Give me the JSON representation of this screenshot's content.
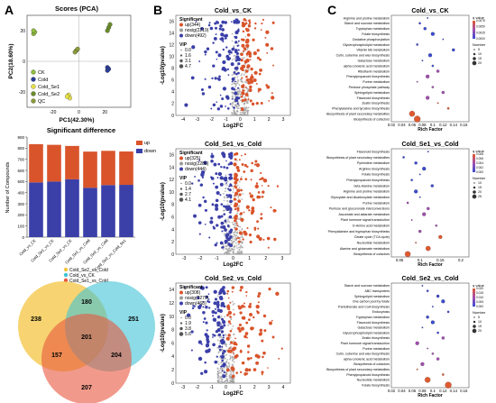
{
  "figure": {
    "panel_labels": [
      "A",
      "B",
      "C"
    ]
  },
  "chart_data": [
    {
      "id": "pca",
      "type": "scatter",
      "title": "Scores (PCA)",
      "xlabel": "PC1(42.30%)",
      "ylabel": "PC2(18.60%)",
      "xticks": [
        -20,
        0,
        20
      ],
      "yticks": [
        -20,
        0,
        20
      ],
      "xlim": [
        -40,
        40
      ],
      "ylim": [
        -30,
        30
      ],
      "series": [
        {
          "name": "CK",
          "color": "#8fbc3f",
          "points": [
            [
              -35,
              18
            ],
            [
              -34,
              19
            ],
            [
              -35,
              20
            ]
          ]
        },
        {
          "name": "Cold",
          "color": "#2a3e9a",
          "points": [
            [
              22,
              -4
            ],
            [
              23,
              -5
            ],
            [
              22,
              -6
            ]
          ]
        },
        {
          "name": "Cold_Se1",
          "color": "#e6e04a",
          "points": [
            [
              -8,
              -22
            ],
            [
              -7,
              -24
            ],
            [
              -9,
              -23
            ]
          ]
        },
        {
          "name": "Cold_Se2",
          "color": "#6a8d2a",
          "points": [
            [
              23,
              22
            ],
            [
              24,
              24
            ],
            [
              22,
              20
            ]
          ]
        },
        {
          "name": "QC",
          "color": "#8d9b3a",
          "points": [
            [
              -2,
              7
            ],
            [
              -1,
              8
            ],
            [
              -3,
              6
            ]
          ]
        }
      ]
    },
    {
      "id": "sigdiff",
      "type": "bar",
      "title": "Significant difference",
      "ylabel": "Number of Compounds",
      "yticks": [
        0,
        100,
        200,
        300,
        400,
        500,
        600,
        700,
        800,
        900
      ],
      "ylim": [
        0,
        900
      ],
      "categories": [
        "Cold_vs_CK",
        "Cold_Se1_vs_CK",
        "Cold_Se2_vs_CK",
        "Cold_Se1_vs_Cold",
        "Cold_Se2_vs_Cold",
        "Cold_Se2_vs_Cold_Se1"
      ],
      "series": [
        {
          "name": "up",
          "color": "#d9542b",
          "values": [
            344,
            330,
            300,
            325,
            308,
            300
          ]
        },
        {
          "name": "down",
          "color": "#3b3fa8",
          "values": [
            492,
            500,
            520,
            444,
            468,
            470
          ]
        }
      ],
      "legend_position": "top-right"
    },
    {
      "id": "venn",
      "type": "venn",
      "sets": [
        {
          "name": "Cold_Se2_vs_Cold",
          "color": "#f4c542"
        },
        {
          "name": "Cold_vs_CK",
          "color": "#3fc3d6"
        },
        {
          "name": "Cold_Se1_vs_Cold",
          "color": "#e8563d"
        }
      ],
      "regions": {
        "a_only": 238,
        "b_only": 251,
        "c_only": 207,
        "ab": 180,
        "ac": 157,
        "bc": 204,
        "abc": 201
      }
    },
    {
      "id": "volcano1",
      "type": "scatter",
      "title": "Cold_vs_CK",
      "xlabel": "Log2FC",
      "ylabel": "-Log10(pvalue)",
      "xticks": [
        -4,
        -3,
        -2,
        -1,
        0,
        1,
        2,
        3
      ],
      "yticks": [
        0,
        2,
        4,
        6,
        8,
        10,
        12,
        14,
        16
      ],
      "xlim": [
        -4.5,
        3.5
      ],
      "ylim": [
        0,
        17
      ],
      "legend": {
        "significant_title": "Significant",
        "entries": [
          {
            "label": "up(344)",
            "color": "#d9542b"
          },
          {
            "label": "nosig(2219)",
            "color": "#9a9a9a"
          },
          {
            "label": "down(492)",
            "color": "#3b3fa8"
          }
        ],
        "vip_title": "VIP",
        "vip_values": [
          "0.0",
          "1.6",
          "3.1",
          "4.7"
        ]
      }
    },
    {
      "id": "volcano2",
      "type": "scatter",
      "title": "Cold_Se1_vs_Cold",
      "xlabel": "Log2FC",
      "ylabel": "-Log10(pvalue)",
      "xticks": [
        -3,
        -2,
        -1,
        0,
        1,
        2,
        3
      ],
      "yticks": [
        0,
        2,
        4,
        6,
        8,
        10,
        12,
        14,
        16
      ],
      "xlim": [
        -3.5,
        3.5
      ],
      "ylim": [
        0,
        17
      ],
      "legend": {
        "significant_title": "Significant",
        "entries": [
          {
            "label": "up(325)",
            "color": "#d9542b"
          },
          {
            "label": "nosig(2286)",
            "color": "#9a9a9a"
          },
          {
            "label": "down(444)",
            "color": "#3b3fa8"
          }
        ],
        "vip_title": "VIP",
        "vip_values": [
          "0.0",
          "1.4",
          "2.7",
          "4.1"
        ]
      }
    },
    {
      "id": "volcano3",
      "type": "scatter",
      "title": "Cold_Se2_vs_Cold",
      "xlabel": "Log2FC",
      "ylabel": "-Log10(pvalue)",
      "xticks": [
        -3,
        -2,
        -1,
        0,
        1,
        2,
        3,
        4
      ],
      "yticks": [
        0,
        2,
        4,
        6,
        8,
        10,
        12,
        14
      ],
      "xlim": [
        -3.5,
        4.5
      ],
      "ylim": [
        0,
        15
      ],
      "legend": {
        "significant_title": "Significant",
        "entries": [
          {
            "label": "up(308)",
            "color": "#d9542b"
          },
          {
            "label": "nosig(2279)",
            "color": "#9a9a9a"
          },
          {
            "label": "down(468)",
            "color": "#3b3fa8"
          }
        ],
        "vip_title": "VIP",
        "vip_values": [
          "0.0",
          "1.9",
          "3.8",
          "5.6"
        ]
      }
    },
    {
      "id": "kegg1",
      "type": "scatter",
      "title": "Cold_vs_CK",
      "xlabel": "Rich Factor",
      "xticks": [
        0.02,
        0.04,
        0.06,
        0.08,
        0.1,
        0.12,
        0.14,
        0.16
      ],
      "xlim": [
        0.02,
        0.17
      ],
      "pathways": [
        "Arginine and proline metabolism",
        "Starch and sucrose metabolism",
        "Tryptophan metabolism",
        "Folate biosynthesis",
        "Oxidative phosphorylation",
        "Glycerophospholipid metabolism",
        "Vitamin B6 metabolism",
        "Cutin, suberine and wax biosynthesis",
        "Galactose metabolism",
        "alpha-Linolenic acid metabolism",
        "Riboflavin metabolism",
        "Phenylpropanoid biosynthesis",
        "Purine metabolism",
        "Pentose phosphate pathway",
        "Sphingolipid metabolism",
        "Flavonoid biosynthesis",
        "Zeatin biosynthesis",
        "Phenylalanine and tyrosine biosynthesis",
        "Biosynthesis of plant secondary metabolites",
        "Biosynthesis of cofactors"
      ],
      "rich_factor": [
        0.09,
        0.075,
        0.085,
        0.1,
        0.12,
        0.07,
        0.14,
        0.095,
        0.08,
        0.1,
        0.11,
        0.09,
        0.07,
        0.1,
        0.12,
        0.09,
        0.11,
        0.13,
        0.06,
        0.07
      ],
      "qvalue_legend_title": "q value",
      "qvalue_ticks": [
        "0.0000",
        "0.0025",
        "0.0050",
        "0.0075"
      ],
      "number_legend_title": "Number",
      "number_values": [
        "5",
        "10",
        "15",
        "20"
      ]
    },
    {
      "id": "kegg2",
      "type": "scatter",
      "title": "Cold_Se1_vs_Cold",
      "xlabel": "Rich Factor",
      "xticks": [
        0.05,
        0.1,
        0.15,
        0.2
      ],
      "xlim": [
        0.03,
        0.22
      ],
      "pathways": [
        "Flavonoid biosynthesis",
        "Biosynthesis of plant secondary metabolites",
        "Pyrimidine metabolism",
        "Arginine biosynthesis",
        "Folate biosynthesis",
        "Phenylpropanoid biosynthesis",
        "beta-Alanine metabolism",
        "Arginine and proline metabolism",
        "Glyoxylate and dicarboxylate metabolism",
        "Purine metabolism",
        "Pentose and glucuronate interconversions",
        "Ascorbate and aldarate metabolism",
        "Plant hormone signal transduction",
        "D-Amino acid metabolism",
        "Phenylalanine and tryptophan biosynthesis",
        "Citrate cycle (TCA cycle)",
        "Nucleotide metabolism",
        "Alanine and glutamate metabolism",
        "Biosynthesis of cofactors"
      ],
      "rich_factor": [
        0.12,
        0.06,
        0.09,
        0.11,
        0.1,
        0.08,
        0.13,
        0.09,
        0.1,
        0.07,
        0.12,
        0.11,
        0.08,
        0.14,
        0.1,
        0.15,
        0.09,
        0.12,
        0.07
      ],
      "qvalue_legend_title": "q value",
      "qvalue_ticks": [
        "0.000",
        "0.002",
        "0.004",
        "0.006",
        "0.008"
      ],
      "number_legend_title": "Number",
      "number_values": [
        "10",
        "15",
        "20",
        "25"
      ]
    },
    {
      "id": "kegg3",
      "type": "scatter",
      "title": "Cold_Se2_vs_Cold",
      "xlabel": "Rich Factor",
      "xticks": [
        0.02,
        0.04,
        0.06,
        0.08,
        0.1,
        0.12,
        0.14,
        0.16
      ],
      "xlim": [
        0.02,
        0.17
      ],
      "pathways": [
        "Starch and sucrose metabolism",
        "ABC transporters",
        "Sphingolipid metabolism",
        "One carbon pool by folate",
        "Pantothenate and CoA biosynthesis",
        "Endocytosis",
        "Tryptophan metabolism",
        "Flavonoid biosynthesis",
        "Galactose metabolism",
        "Glycerophospholipid metabolism",
        "Zeatin biosynthesis",
        "Plant hormone signal transduction",
        "Purine metabolism",
        "Cutin, suberine and wax biosynthesis",
        "alpha-Linolenic acid metabolism",
        "Biosynthesis of cofactors",
        "Biosynthesis of plant secondary metabolites",
        "Phenylpropanoid biosynthesis",
        "Nucleotide metabolism",
        "Folate biosynthesis"
      ],
      "rich_factor": [
        0.08,
        0.09,
        0.11,
        0.12,
        0.1,
        0.13,
        0.09,
        0.1,
        0.08,
        0.11,
        0.12,
        0.07,
        0.09,
        0.1,
        0.11,
        0.08,
        0.07,
        0.12,
        0.09,
        0.13
      ],
      "qvalue_legend_title": "q value",
      "qvalue_ticks": [
        "0.000",
        "0.005",
        "0.010",
        "0.015",
        "0.020"
      ],
      "number_legend_title": "Number",
      "number_values": [
        "5",
        "10",
        "15",
        "20"
      ]
    }
  ]
}
